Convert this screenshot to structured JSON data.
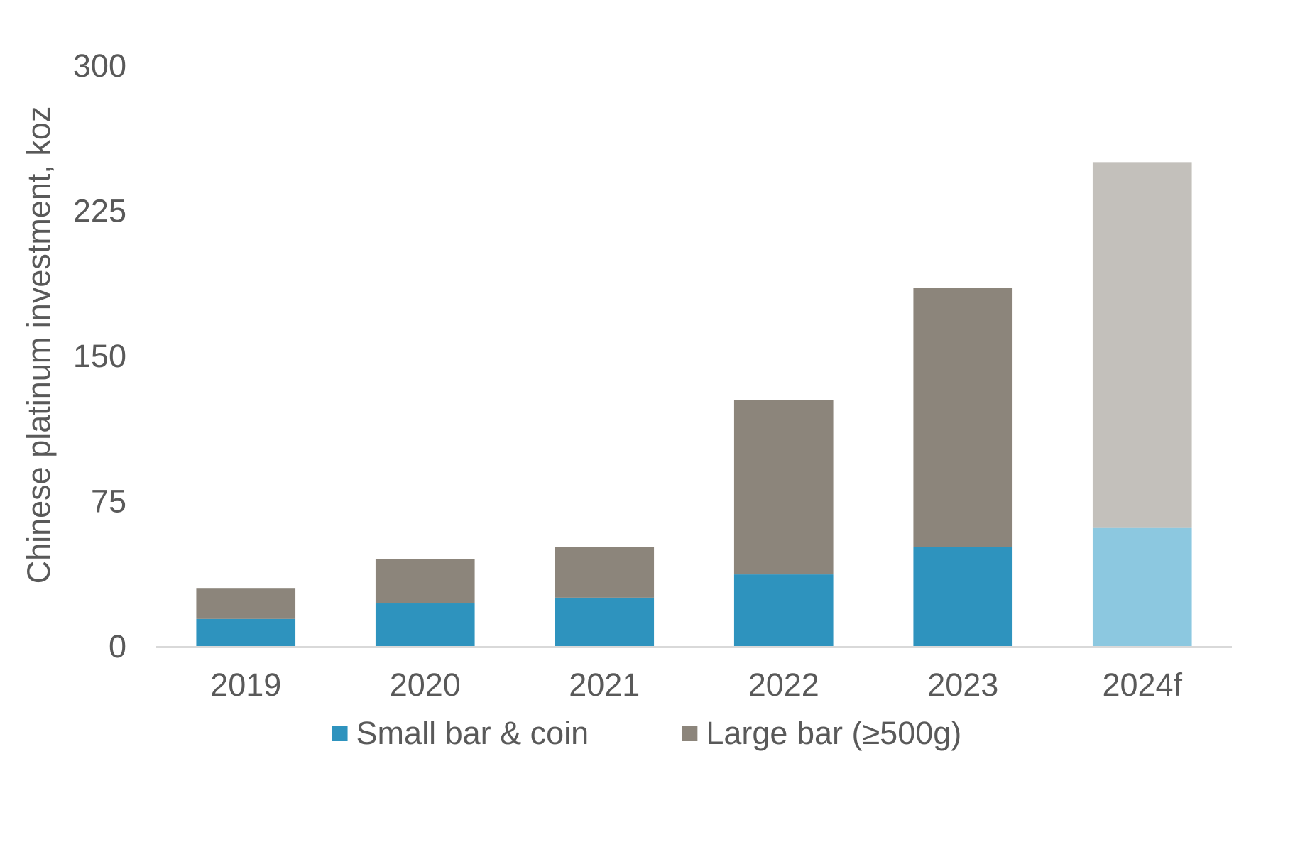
{
  "chart_data": {
    "type": "bar",
    "stacked": true,
    "categories": [
      "2019",
      "2020",
      "2021",
      "2022",
      "2023",
      "2024f"
    ],
    "forecast_categories": [
      "2024f"
    ],
    "series": [
      {
        "name": "Small bar & coin",
        "values": [
          14,
          22,
          25,
          37,
          51,
          61
        ],
        "color": "#2E93BE",
        "forecast_color": "#8CC8E0"
      },
      {
        "name": "Large bar (≥500g)",
        "values": [
          16,
          23,
          26,
          90,
          134,
          189
        ],
        "color": "#8C857B",
        "forecast_color": "#C3C0BB"
      }
    ],
    "title": "",
    "xlabel": "",
    "ylabel": "Chinese platinum investment, koz",
    "ylim": [
      0,
      300
    ],
    "yticks": [
      0,
      75,
      150,
      225,
      300
    ],
    "grid": false,
    "legend_position": "bottom"
  }
}
